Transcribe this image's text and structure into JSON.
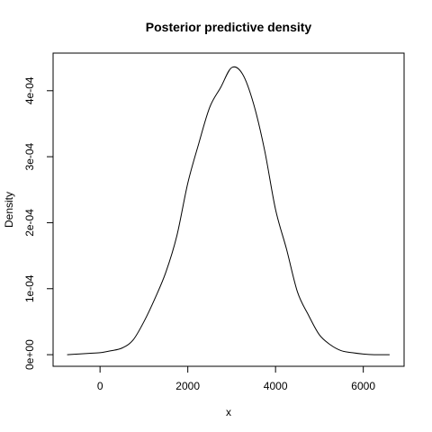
{
  "chart_data": {
    "type": "line",
    "title": "Posterior predictive density",
    "xlabel": "x",
    "ylabel": "Density",
    "xlim": [
      -1070,
      6930
    ],
    "ylim": [
      -1.76e-05,
      0.000457
    ],
    "x_ticks": [
      {
        "value": 0,
        "label": "0"
      },
      {
        "value": 2000,
        "label": "2000"
      },
      {
        "value": 4000,
        "label": "4000"
      },
      {
        "value": 6000,
        "label": "6000"
      }
    ],
    "y_ticks": [
      {
        "value": 0,
        "label": "0e+00"
      },
      {
        "value": 0.0001,
        "label": "1e-04"
      },
      {
        "value": 0.0002,
        "label": "2e-04"
      },
      {
        "value": 0.0003,
        "label": "3e-04"
      },
      {
        "value": 0.0004,
        "label": "4e-04"
      }
    ],
    "grid": false,
    "legend": "none",
    "series": [
      {
        "color": "#000000",
        "x": [
          -750,
          -500,
          -250,
          0,
          250,
          500,
          750,
          1000,
          1250,
          1500,
          1750,
          2000,
          2250,
          2500,
          2750,
          3000,
          3250,
          3500,
          3750,
          4000,
          4250,
          4500,
          4750,
          5000,
          5250,
          5500,
          5750,
          6000,
          6250,
          6600
        ],
        "y": [
          0.0,
          1e-06,
          2e-06,
          3e-06,
          6e-06,
          1e-05,
          2.2e-05,
          5e-05,
          8.5e-05,
          0.000125,
          0.00018,
          0.00026,
          0.00032,
          0.000375,
          0.000405,
          0.000435,
          0.000425,
          0.00038,
          0.00031,
          0.00022,
          0.00016,
          9.5e-05,
          6e-05,
          3e-05,
          1.5e-05,
          6e-06,
          3e-06,
          1e-06,
          0.0,
          0.0
        ]
      }
    ]
  }
}
